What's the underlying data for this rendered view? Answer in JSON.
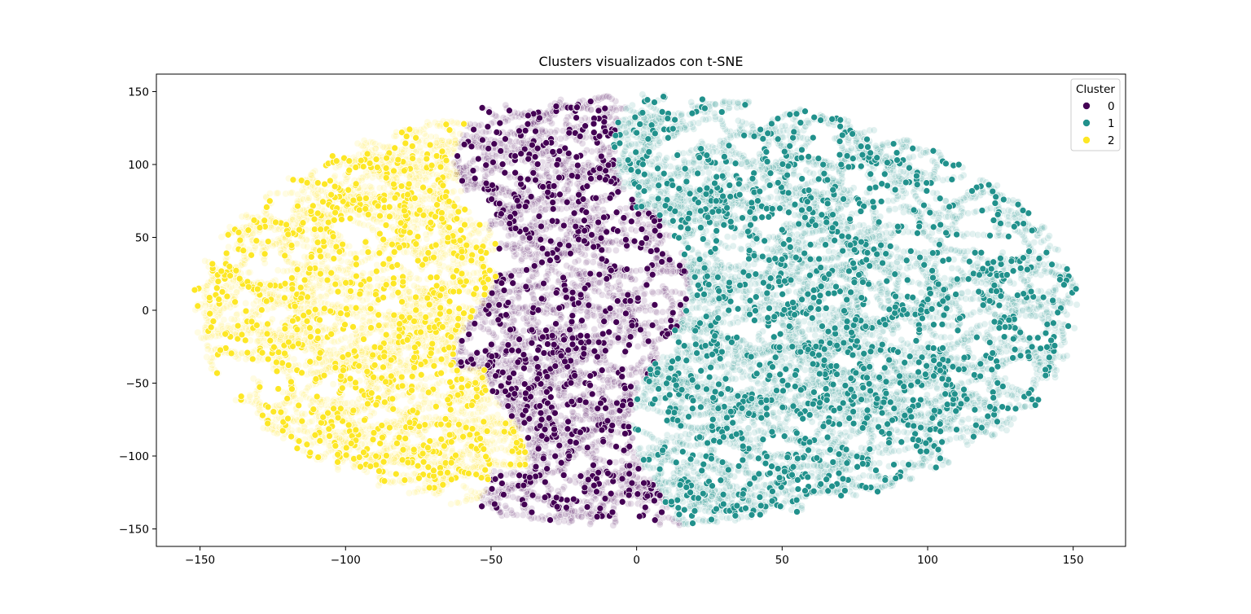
{
  "chart_data": {
    "type": "scatter",
    "title": "Clusters visualizados con t-SNE",
    "xlabel": "",
    "ylabel": "",
    "xlim": [
      -165,
      168
    ],
    "ylim": [
      -162,
      162
    ],
    "xticks": [
      -150,
      -100,
      -50,
      0,
      50,
      100,
      150
    ],
    "yticks": [
      -150,
      -100,
      -50,
      0,
      50,
      100,
      150
    ],
    "xtick_labels": [
      "−150",
      "−100",
      "−50",
      "0",
      "50",
      "100",
      "150"
    ],
    "ytick_labels": [
      "−150",
      "−100",
      "−50",
      "0",
      "50",
      "100",
      "150"
    ],
    "grid": false,
    "legend": {
      "title": "Cluster",
      "placement": "top-right",
      "entries": [
        {
          "label": "0",
          "color": "#440154"
        },
        {
          "label": "1",
          "color": "#21918c"
        },
        {
          "label": "2",
          "color": "#fde725"
        }
      ]
    },
    "series": [
      {
        "name": "0",
        "color": "#440154",
        "region": {
          "x_range": [
            -65,
            28
          ],
          "y_range": [
            -145,
            142
          ]
        },
        "approx_point_count": 3300
      },
      {
        "name": "1",
        "color": "#21918c",
        "region": {
          "x_range": [
            -22,
            152
          ],
          "y_range": [
            -148,
            150
          ]
        },
        "approx_point_count": 6200
      },
      {
        "name": "2",
        "color": "#fde725",
        "region": {
          "x_range": [
            -150,
            -33
          ],
          "y_range": [
            -118,
            118
          ]
        },
        "approx_point_count": 2800
      }
    ]
  }
}
